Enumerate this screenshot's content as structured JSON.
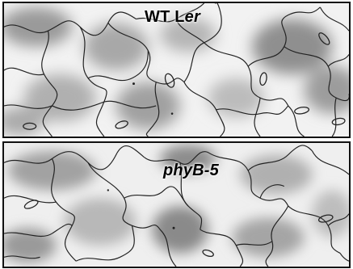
{
  "panels": [
    {
      "label_prefix": "WT L",
      "label_italic": "er"
    },
    {
      "label": "phyB-5"
    }
  ],
  "colors": {
    "background": "#ffffff",
    "cell_outline": "#222222",
    "shading": "#8a8a8a",
    "border": "#111111"
  }
}
